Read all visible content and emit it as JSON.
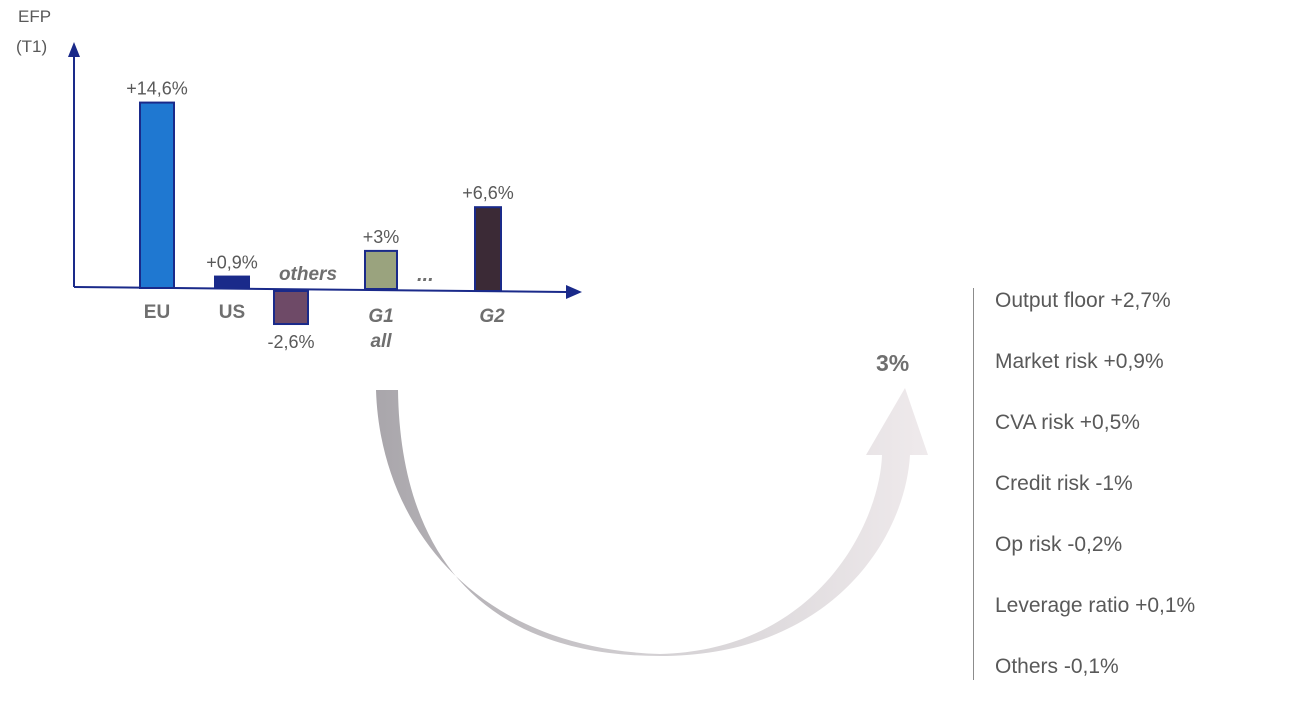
{
  "chart_data": {
    "type": "bar",
    "ylabel": "EFP\n(T1)",
    "categories": [
      "EU",
      "US",
      "others",
      "G1\nall",
      "G2"
    ],
    "values": [
      14.6,
      0.9,
      -2.6,
      3,
      6.6
    ],
    "value_labels": [
      "+14,6%",
      "+0,9%",
      "-2,6%",
      "+3%",
      "+6,6%"
    ],
    "colors": [
      "#1f78d1",
      "#1a2a8a",
      "#6e4a67",
      "#9aa37e",
      "#3b2a36"
    ],
    "category_styles": [
      "bold",
      "bold",
      "bold-italic",
      "bold-italic",
      "bold-italic"
    ],
    "ellipsis": "...",
    "axis_color": "#1a2a8a"
  },
  "breakdown": {
    "total": "3%",
    "items": [
      "Output floor +2,7%",
      "Market risk +0,9%",
      "CVA risk +0,5%",
      "Credit risk -1%",
      "Op risk -0,2%",
      "Leverage ratio +0,1%",
      "Others -0,1%"
    ]
  }
}
